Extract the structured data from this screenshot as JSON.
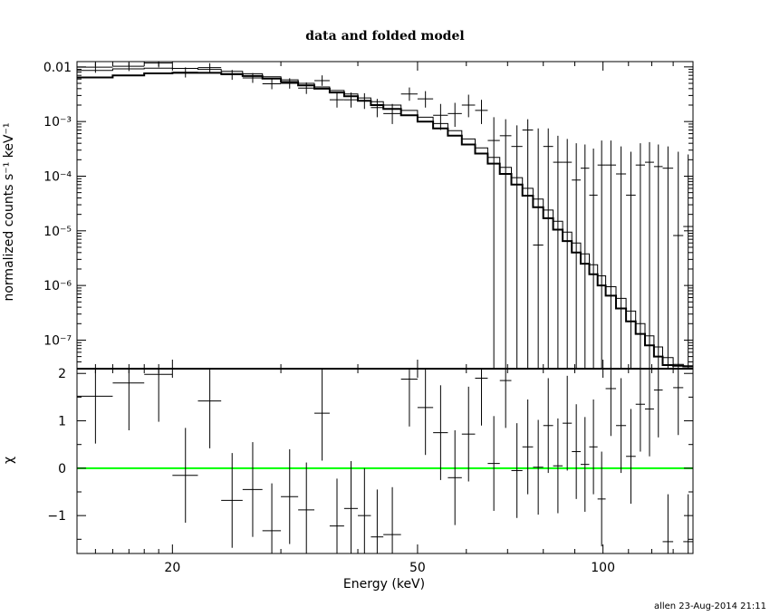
{
  "chart_data": {
    "type": "scatter",
    "title": "data and folded model",
    "footer": "allen 23-Aug-2014 21:11",
    "xlabel": "Energy (keV)",
    "xscale": "log",
    "xlim": [
      14.0,
      140.0
    ],
    "x_ticks": [
      {
        "value": 20,
        "label": "20"
      },
      {
        "value": 50,
        "label": "50"
      },
      {
        "value": 100,
        "label": "100"
      }
    ],
    "top_panel": {
      "ylabel": "normalized counts s⁻¹ keV⁻¹",
      "yscale": "log",
      "ylim": [
        3e-08,
        0.0125
      ],
      "y_ticks": [
        {
          "value": 0.01,
          "label": "0.01"
        },
        {
          "value": 0.001,
          "label": "10⁻³"
        },
        {
          "value": 0.0001,
          "label": "10⁻⁴"
        },
        {
          "value": 1e-05,
          "label": "10⁻⁵"
        },
        {
          "value": 1e-06,
          "label": "10⁻⁶"
        },
        {
          "value": 1e-07,
          "label": "10⁻⁷"
        }
      ],
      "data": [
        {
          "x": 15.0,
          "xerr": 1.0,
          "y": 0.0099,
          "ylo": 0.0078,
          "yhi": 0.0118
        },
        {
          "x": 17.0,
          "xerr": 1.0,
          "y": 0.0103,
          "ylo": 0.0084,
          "yhi": 0.0118
        },
        {
          "x": 19.0,
          "xerr": 1.0,
          "y": 0.0118,
          "ylo": 0.0098,
          "yhi": 0.0125
        },
        {
          "x": 21.0,
          "xerr": 1.0,
          "y": 0.008,
          "ylo": 0.0064,
          "yhi": 0.0098
        },
        {
          "x": 23.0,
          "xerr": 1.0,
          "y": 0.0097,
          "ylo": 0.008,
          "yhi": 0.0117
        },
        {
          "x": 25.0,
          "xerr": 1.0,
          "y": 0.0072,
          "ylo": 0.0058,
          "yhi": 0.0088
        },
        {
          "x": 27.0,
          "xerr": 1.0,
          "y": 0.0063,
          "ylo": 0.0051,
          "yhi": 0.0077
        },
        {
          "x": 29.0,
          "xerr": 1.0,
          "y": 0.0049,
          "ylo": 0.0039,
          "yhi": 0.0061
        },
        {
          "x": 31.0,
          "xerr": 1.0,
          "y": 0.005,
          "ylo": 0.004,
          "yhi": 0.0062
        },
        {
          "x": 33.0,
          "xerr": 1.0,
          "y": 0.0041,
          "ylo": 0.0032,
          "yhi": 0.0052
        },
        {
          "x": 35.0,
          "xerr": 1.0,
          "y": 0.0056,
          "ylo": 0.0045,
          "yhi": 0.007
        },
        {
          "x": 37.0,
          "xerr": 1.0,
          "y": 0.0025,
          "ylo": 0.0018,
          "yhi": 0.0034
        },
        {
          "x": 39.0,
          "xerr": 1.0,
          "y": 0.0025,
          "ylo": 0.0018,
          "yhi": 0.0034
        },
        {
          "x": 41.0,
          "xerr": 1.0,
          "y": 0.0024,
          "ylo": 0.0017,
          "yhi": 0.0033
        },
        {
          "x": 43.0,
          "xerr": 1.0,
          "y": 0.0018,
          "ylo": 0.0012,
          "yhi": 0.0026
        },
        {
          "x": 45.5,
          "xerr": 1.5,
          "y": 0.0014,
          "ylo": 0.0009,
          "yhi": 0.0021
        },
        {
          "x": 48.5,
          "xerr": 1.5,
          "y": 0.0032,
          "ylo": 0.0024,
          "yhi": 0.0042
        },
        {
          "x": 51.5,
          "xerr": 1.5,
          "y": 0.0026,
          "ylo": 0.0018,
          "yhi": 0.0036
        },
        {
          "x": 54.5,
          "xerr": 1.5,
          "y": 0.0013,
          "ylo": 0.0007,
          "yhi": 0.0021
        },
        {
          "x": 57.5,
          "xerr": 1.5,
          "y": 0.0014,
          "ylo": 0.0008,
          "yhi": 0.0022
        },
        {
          "x": 60.5,
          "xerr": 1.5,
          "y": 0.002,
          "ylo": 0.0012,
          "yhi": 0.0031
        },
        {
          "x": 63.5,
          "xerr": 1.5,
          "y": 0.0016,
          "ylo": 0.0009,
          "yhi": 0.0025
        },
        {
          "x": 66.5,
          "xerr": 1.5,
          "y": 0.00045,
          "ylo": 3e-08,
          "yhi": 0.0012
        },
        {
          "x": 69.5,
          "xerr": 1.5,
          "y": 0.00055,
          "ylo": 3e-08,
          "yhi": 0.0011
        },
        {
          "x": 72.5,
          "xerr": 1.5,
          "y": 0.00035,
          "ylo": 3e-08,
          "yhi": 0.00085
        },
        {
          "x": 75.5,
          "xerr": 1.5,
          "y": 0.0007,
          "ylo": 3e-08,
          "yhi": 0.0011
        },
        {
          "x": 78.5,
          "xerr": 1.5,
          "y": 5.5e-06,
          "ylo": 3e-08,
          "yhi": 0.00075
        },
        {
          "x": 81.5,
          "xerr": 1.5,
          "y": 0.00035,
          "ylo": 3e-08,
          "yhi": 0.00075
        },
        {
          "x": 84.5,
          "xerr": 1.5,
          "y": 0.00018,
          "ylo": 3e-08,
          "yhi": 0.00055
        },
        {
          "x": 87.5,
          "xerr": 1.5,
          "y": 0.00018,
          "ylo": 3e-08,
          "yhi": 0.00048
        },
        {
          "x": 90.5,
          "xerr": 1.5,
          "y": 8.5e-05,
          "ylo": 3e-08,
          "yhi": 0.0004
        },
        {
          "x": 93.5,
          "xerr": 1.5,
          "y": 0.00014,
          "ylo": 3e-08,
          "yhi": 0.00038
        },
        {
          "x": 96.5,
          "xerr": 1.5,
          "y": 4.5e-05,
          "ylo": 3e-08,
          "yhi": 0.00032
        },
        {
          "x": 99.5,
          "xerr": 1.5,
          "y": 0.00016,
          "ylo": 3e-08,
          "yhi": 0.00045
        },
        {
          "x": 103.0,
          "xerr": 2.0,
          "y": 0.00016,
          "ylo": 3e-08,
          "yhi": 0.00045
        },
        {
          "x": 107.0,
          "xerr": 2.0,
          "y": 0.00011,
          "ylo": 3e-08,
          "yhi": 0.00035
        },
        {
          "x": 111.0,
          "xerr": 2.0,
          "y": 4.5e-05,
          "ylo": 3e-08,
          "yhi": 0.00028
        },
        {
          "x": 115.0,
          "xerr": 2.0,
          "y": 0.00016,
          "ylo": 3e-08,
          "yhi": 0.0004
        },
        {
          "x": 119.0,
          "xerr": 2.0,
          "y": 0.00018,
          "ylo": 3e-08,
          "yhi": 0.00042
        },
        {
          "x": 123.0,
          "xerr": 2.0,
          "y": 0.00015,
          "ylo": 3e-08,
          "yhi": 0.00038
        },
        {
          "x": 127.5,
          "xerr": 2.5,
          "y": 0.00014,
          "ylo": 3e-08,
          "yhi": 0.00035
        },
        {
          "x": 132.5,
          "xerr": 2.5,
          "y": 8.2e-06,
          "ylo": 3e-08,
          "yhi": 0.00028
        },
        {
          "x": 137.5,
          "xerr": 2.5,
          "y": 1.2e-05,
          "ylo": 3e-08,
          "yhi": 0.00025
        }
      ],
      "model_thick": {
        "x": [
          14,
          16,
          18,
          20,
          22,
          24,
          26,
          28,
          30,
          32,
          34,
          36,
          38,
          40,
          42,
          44,
          47,
          50,
          53,
          56,
          59,
          62,
          65,
          68,
          71,
          74,
          77,
          80,
          83,
          86,
          89,
          92,
          95,
          98,
          101,
          105,
          109,
          113,
          117,
          121,
          125,
          130,
          135,
          140
        ],
        "y": [
          0.0064,
          0.007,
          0.0076,
          0.0078,
          0.0078,
          0.0074,
          0.0068,
          0.0061,
          0.0053,
          0.0046,
          0.004,
          0.0034,
          0.0029,
          0.0024,
          0.002,
          0.0017,
          0.0013,
          0.001,
          0.00075,
          0.00055,
          0.00038,
          0.00026,
          0.00017,
          0.00011,
          7e-05,
          4.4e-05,
          2.7e-05,
          1.7e-05,
          1.05e-05,
          6.5e-06,
          4e-06,
          2.5e-06,
          1.6e-06,
          1e-06,
          6.5e-07,
          3.8e-07,
          2.2e-07,
          1.3e-07,
          8e-08,
          5e-08,
          3.5e-08,
          3.4e-08,
          3.3e-08,
          3.3e-08
        ]
      },
      "model_thin": {
        "x": [
          14,
          16,
          18,
          20,
          22,
          24,
          26,
          28,
          30,
          32,
          34,
          36,
          38,
          40,
          42,
          44,
          47,
          50,
          53,
          56,
          59,
          62,
          65,
          68,
          71,
          74,
          77,
          80,
          83,
          86,
          89,
          92,
          95,
          98,
          101,
          105,
          109,
          113,
          117,
          121,
          125,
          130,
          135,
          140
        ],
        "y": [
          0.0086,
          0.0092,
          0.0095,
          0.0094,
          0.009,
          0.0083,
          0.0075,
          0.0066,
          0.0058,
          0.005,
          0.0043,
          0.0037,
          0.0032,
          0.0027,
          0.0023,
          0.002,
          0.0016,
          0.0012,
          0.00092,
          0.00068,
          0.00048,
          0.00033,
          0.00022,
          0.000145,
          9.4e-05,
          6e-05,
          3.8e-05,
          2.4e-05,
          1.5e-05,
          9.5e-06,
          6e-06,
          3.8e-06,
          2.4e-06,
          1.5e-06,
          9.5e-07,
          5.8e-07,
          3.4e-07,
          2e-07,
          1.2e-07,
          7.5e-08,
          4.8e-08,
          3.6e-08,
          3.4e-08,
          3.3e-08
        ]
      }
    },
    "bottom_panel": {
      "ylabel": "χ",
      "ylim": [
        -1.8,
        2.1
      ],
      "y_ticks": [
        {
          "value": 2,
          "label": "2"
        },
        {
          "value": 1,
          "label": "1"
        },
        {
          "value": 0,
          "label": "0"
        },
        {
          "value": -1,
          "label": "−1"
        }
      ],
      "zero_line_color": "#00ff00",
      "data": [
        {
          "x": 15.0,
          "xerr": 1.0,
          "y": 1.52,
          "ylo": 0.52,
          "yhi": 2.1
        },
        {
          "x": 17.0,
          "xerr": 1.0,
          "y": 1.8,
          "ylo": 0.8,
          "yhi": 2.1
        },
        {
          "x": 19.0,
          "xerr": 1.0,
          "y": 1.98,
          "ylo": 0.98,
          "yhi": 2.1
        },
        {
          "x": 21.0,
          "xerr": 1.0,
          "y": -0.15,
          "ylo": -1.15,
          "yhi": 0.85
        },
        {
          "x": 23.0,
          "xerr": 1.0,
          "y": 1.42,
          "ylo": 0.42,
          "yhi": 2.1
        },
        {
          "x": 25.0,
          "xerr": 1.0,
          "y": -0.68,
          "ylo": -1.68,
          "yhi": 0.32
        },
        {
          "x": 27.0,
          "xerr": 1.0,
          "y": -0.45,
          "ylo": -1.45,
          "yhi": 0.55
        },
        {
          "x": 29.0,
          "xerr": 1.0,
          "y": -1.32,
          "ylo": -1.8,
          "yhi": -0.32
        },
        {
          "x": 31.0,
          "xerr": 1.0,
          "y": -0.6,
          "ylo": -1.6,
          "yhi": 0.4
        },
        {
          "x": 33.0,
          "xerr": 1.0,
          "y": -0.88,
          "ylo": -1.8,
          "yhi": 0.12
        },
        {
          "x": 35.0,
          "xerr": 1.0,
          "y": 1.16,
          "ylo": 0.16,
          "yhi": 2.1
        },
        {
          "x": 37.0,
          "xerr": 1.0,
          "y": -1.22,
          "ylo": -1.8,
          "yhi": -0.22
        },
        {
          "x": 39.0,
          "xerr": 1.0,
          "y": -0.85,
          "ylo": -1.8,
          "yhi": 0.15
        },
        {
          "x": 41.0,
          "xerr": 1.0,
          "y": -1.0,
          "ylo": -1.8,
          "yhi": 0.0
        },
        {
          "x": 43.0,
          "xerr": 1.0,
          "y": -1.45,
          "ylo": -1.8,
          "yhi": -0.45
        },
        {
          "x": 45.5,
          "xerr": 1.5,
          "y": -1.4,
          "ylo": -1.8,
          "yhi": -0.4
        },
        {
          "x": 48.5,
          "xerr": 1.5,
          "y": 1.88,
          "ylo": 0.88,
          "yhi": 2.1
        },
        {
          "x": 51.5,
          "xerr": 1.5,
          "y": 1.28,
          "ylo": 0.28,
          "yhi": 2.1
        },
        {
          "x": 54.5,
          "xerr": 1.5,
          "y": 0.75,
          "ylo": -0.25,
          "yhi": 1.75
        },
        {
          "x": 57.5,
          "xerr": 1.5,
          "y": -0.2,
          "ylo": -1.2,
          "yhi": 0.8
        },
        {
          "x": 60.5,
          "xerr": 1.5,
          "y": 0.72,
          "ylo": -0.28,
          "yhi": 1.72
        },
        {
          "x": 63.5,
          "xerr": 1.5,
          "y": 1.9,
          "ylo": 0.9,
          "yhi": 2.1
        },
        {
          "x": 66.5,
          "xerr": 1.5,
          "y": 0.1,
          "ylo": -0.9,
          "yhi": 1.1
        },
        {
          "x": 69.5,
          "xerr": 1.5,
          "y": 1.85,
          "ylo": 0.85,
          "yhi": 2.1
        },
        {
          "x": 72.5,
          "xerr": 1.5,
          "y": -0.05,
          "ylo": -1.05,
          "yhi": 0.95
        },
        {
          "x": 75.5,
          "xerr": 1.5,
          "y": 0.45,
          "ylo": -0.55,
          "yhi": 1.45
        },
        {
          "x": 78.5,
          "xerr": 1.5,
          "y": 0.02,
          "ylo": -0.98,
          "yhi": 1.02
        },
        {
          "x": 81.5,
          "xerr": 1.5,
          "y": 0.9,
          "ylo": -0.1,
          "yhi": 1.9
        },
        {
          "x": 84.5,
          "xerr": 1.5,
          "y": 0.05,
          "ylo": -0.95,
          "yhi": 1.05
        },
        {
          "x": 87.5,
          "xerr": 1.5,
          "y": 0.95,
          "ylo": -0.05,
          "yhi": 1.95
        },
        {
          "x": 90.5,
          "xerr": 1.5,
          "y": 0.35,
          "ylo": -0.65,
          "yhi": 1.35
        },
        {
          "x": 93.5,
          "xerr": 1.5,
          "y": 0.08,
          "ylo": -0.92,
          "yhi": 1.08
        },
        {
          "x": 96.5,
          "xerr": 1.5,
          "y": 0.45,
          "ylo": -0.55,
          "yhi": 1.45
        },
        {
          "x": 99.5,
          "xerr": 1.5,
          "y": -0.65,
          "ylo": -1.65,
          "yhi": 0.35
        },
        {
          "x": 103.0,
          "xerr": 2.0,
          "y": 1.68,
          "ylo": 0.68,
          "yhi": 2.1
        },
        {
          "x": 107.0,
          "xerr": 2.0,
          "y": 0.9,
          "ylo": -0.1,
          "yhi": 1.9
        },
        {
          "x": 111.0,
          "xerr": 2.0,
          "y": 0.25,
          "ylo": -0.75,
          "yhi": 1.25
        },
        {
          "x": 115.0,
          "xerr": 2.0,
          "y": 1.35,
          "ylo": 0.35,
          "yhi": 2.1
        },
        {
          "x": 119.0,
          "xerr": 2.0,
          "y": 1.25,
          "ylo": 0.25,
          "yhi": 2.1
        },
        {
          "x": 123.0,
          "xerr": 2.0,
          "y": 1.65,
          "ylo": 0.65,
          "yhi": 2.1
        },
        {
          "x": 127.5,
          "xerr": 2.5,
          "y": -1.55,
          "ylo": -1.8,
          "yhi": -0.55
        },
        {
          "x": 132.5,
          "xerr": 2.5,
          "y": 1.7,
          "ylo": 0.7,
          "yhi": 2.1
        },
        {
          "x": 137.5,
          "xerr": 2.5,
          "y": -1.55,
          "ylo": -1.8,
          "yhi": -0.55
        }
      ]
    }
  }
}
